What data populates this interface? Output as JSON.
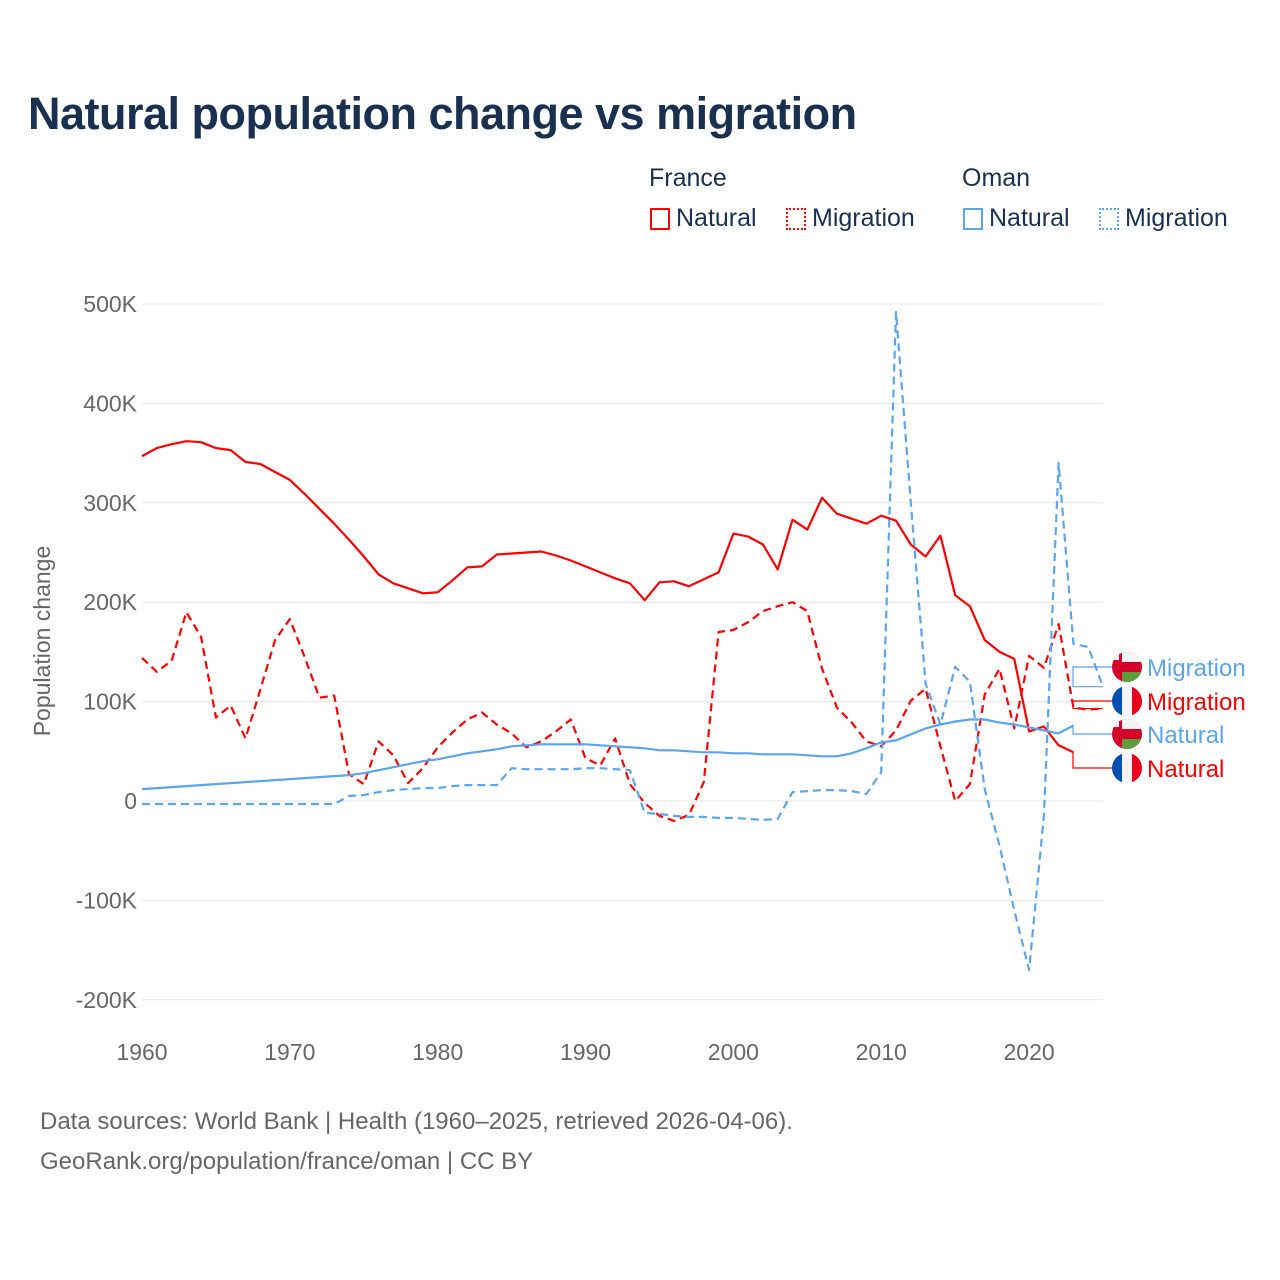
{
  "title": "Natural population change vs migration",
  "legend": {
    "groups": [
      {
        "name": "France",
        "items": [
          {
            "label": "Natural",
            "style": "solid"
          },
          {
            "label": "Migration",
            "style": "dotted"
          }
        ]
      },
      {
        "name": "Oman",
        "items": [
          {
            "label": "Natural",
            "style": "solid"
          },
          {
            "label": "Migration",
            "style": "dotted"
          }
        ]
      }
    ]
  },
  "colors": {
    "france": "#ff0000",
    "oman": "#5ba4ee",
    "grid": "#e6e6e6",
    "text": "#1a3050"
  },
  "footer": {
    "line1": "Data sources: World Bank | Health (1960–2025, retrieved 2026-04-06).",
    "line2": "GeoRank.org/population/france/oman | CC BY"
  },
  "chart_data": {
    "type": "line",
    "title": "Natural population change vs migration",
    "xlabel": "",
    "ylabel": "Population change",
    "xlim": [
      1960,
      2025
    ],
    "ylim": [
      -200000,
      500000
    ],
    "x_ticks": [
      1960,
      1970,
      1980,
      1990,
      2000,
      2010,
      2020
    ],
    "x_tick_labels": [
      "1960",
      "1970",
      "1980",
      "1990",
      "2000",
      "2010",
      "2020"
    ],
    "y_ticks": [
      -200000,
      -100000,
      0,
      100000,
      200000,
      300000,
      400000,
      500000
    ],
    "y_tick_labels": [
      "-200K",
      "-100K",
      "0",
      "100K",
      "200K",
      "300K",
      "400K",
      "500K"
    ],
    "grid": true,
    "legend_placement": "top-right",
    "start_year": 1960,
    "series": [
      {
        "name": "France Natural",
        "country": "France",
        "kind": "Natural",
        "end_label": "Natural",
        "color": "#ff0000",
        "dash": false,
        "flag": "france",
        "values": [
          347000,
          355000,
          359000,
          362000,
          361000,
          355000,
          353000,
          341000,
          339000,
          331000,
          323000,
          309000,
          294000,
          279000,
          263000,
          246000,
          228000,
          219000,
          214000,
          209000,
          210000,
          222000,
          235000,
          236000,
          248000,
          249000,
          250000,
          251000,
          247000,
          242000,
          236000,
          230000,
          224000,
          219000,
          202000,
          220000,
          221000,
          216000,
          223000,
          230000,
          269000,
          266000,
          258000,
          233000,
          283000,
          273000,
          305000,
          289000,
          284000,
          279000,
          287000,
          282000,
          258000,
          246000,
          267000,
          207000,
          196000,
          162000,
          150000,
          143000,
          70000,
          75000,
          56000,
          49000
        ]
      },
      {
        "name": "France Migration",
        "country": "France",
        "kind": "Migration",
        "end_label": "Migration",
        "color": "#ff0000",
        "dash": true,
        "flag": "france",
        "values": [
          144000,
          130000,
          141000,
          190000,
          165000,
          84000,
          96000,
          63000,
          112000,
          162000,
          183000,
          145000,
          104000,
          106000,
          27000,
          17000,
          60000,
          46000,
          18000,
          33000,
          54000,
          69000,
          82000,
          89000,
          77000,
          68000,
          54000,
          60000,
          70000,
          82000,
          43000,
          36000,
          63000,
          17000,
          -2000,
          -15000,
          -20000,
          -14000,
          19000,
          170000,
          172000,
          180000,
          191000,
          196000,
          200000,
          191000,
          133000,
          94000,
          79000,
          60000,
          55000,
          71000,
          101000,
          113000,
          55000,
          0,
          17000,
          107000,
          133000,
          73000,
          146000,
          134000,
          178000,
          94000,
          92000,
          93000
        ]
      },
      {
        "name": "Oman Natural",
        "country": "Oman",
        "kind": "Natural",
        "end_label": "Natural",
        "color": "#5ba4ee",
        "dash": false,
        "flag": "oman",
        "values": [
          12000,
          13000,
          14000,
          15000,
          16000,
          17000,
          18000,
          19000,
          20000,
          21000,
          22000,
          23000,
          24000,
          25000,
          26000,
          28000,
          31000,
          34000,
          37000,
          40000,
          42000,
          45000,
          48000,
          50000,
          52000,
          55000,
          56000,
          57000,
          57000,
          57000,
          57000,
          56000,
          55000,
          54000,
          53000,
          51000,
          51000,
          50000,
          49000,
          49000,
          48000,
          48000,
          47000,
          47000,
          47000,
          46000,
          45000,
          45000,
          48000,
          53000,
          59000,
          61000,
          67000,
          73000,
          77000,
          80000,
          82000,
          82000,
          79000,
          77000,
          74000,
          71000,
          68000,
          76000
        ]
      },
      {
        "name": "Oman Migration",
        "country": "Oman",
        "kind": "Migration",
        "end_label": "Migration",
        "color": "#5ba4ee",
        "dash": true,
        "flag": "oman",
        "values": [
          -3000,
          -3000,
          -3000,
          -3000,
          -3000,
          -3000,
          -3000,
          -3000,
          -3000,
          -3000,
          -3000,
          -3000,
          -3000,
          -3000,
          5000,
          6000,
          9000,
          11000,
          12000,
          13000,
          13000,
          15000,
          16000,
          16000,
          16000,
          33000,
          32000,
          32000,
          32000,
          32000,
          33000,
          33000,
          32000,
          31000,
          -12000,
          -13000,
          -15000,
          -16000,
          -16000,
          -17000,
          -17000,
          -18000,
          -19000,
          -18000,
          9000,
          10000,
          11000,
          11000,
          10000,
          7000,
          29000,
          492000,
          300000,
          118000,
          77000,
          135000,
          120000,
          12000,
          -45000,
          -110000,
          -170000,
          -15000,
          340000,
          158000,
          155000,
          115000
        ]
      }
    ],
    "end_label_order": [
      "Oman Migration",
      "France Migration",
      "Oman Natural",
      "France Natural"
    ]
  }
}
